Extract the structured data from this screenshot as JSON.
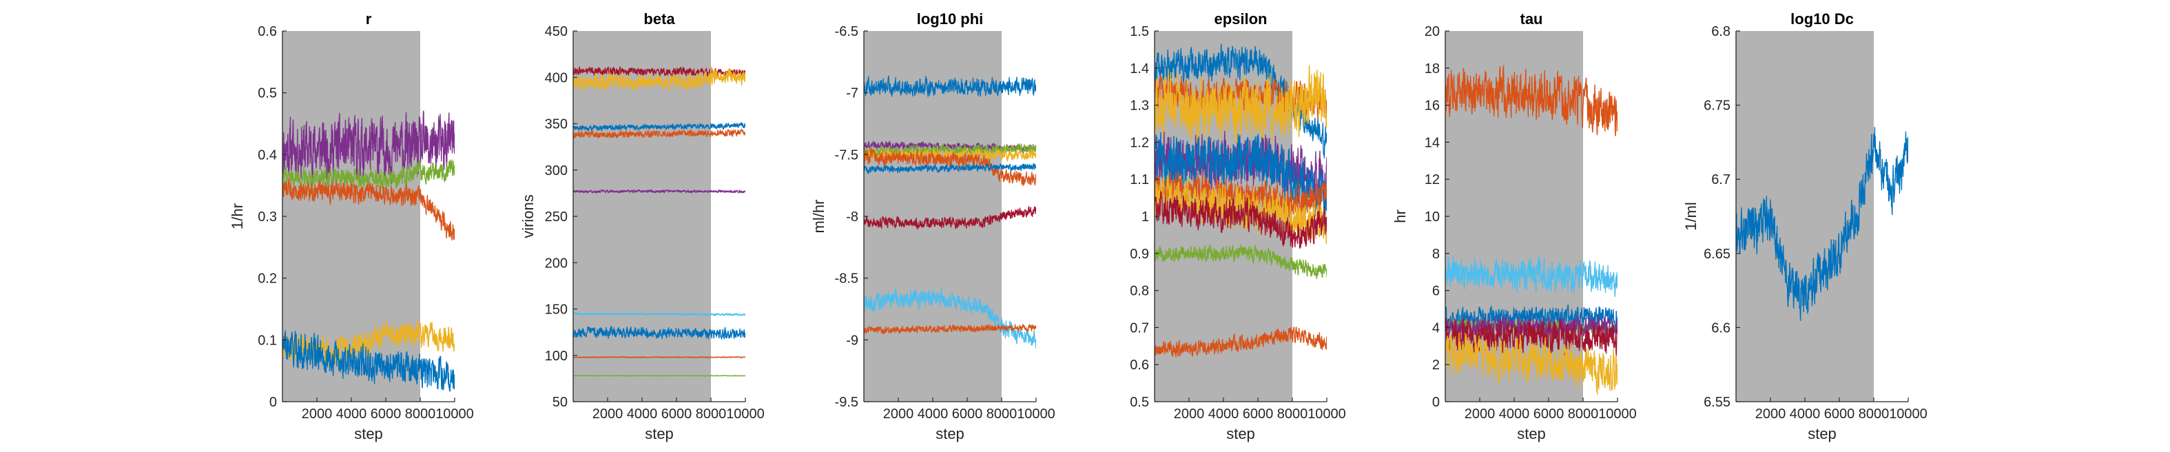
{
  "chart_data": [
    {
      "type": "line",
      "title": "r",
      "xlabel": "step",
      "ylabel": "1/hr",
      "xlim": [
        0,
        10000
      ],
      "ylim": [
        0,
        0.6
      ],
      "xticks": [
        2000,
        4000,
        6000,
        8000,
        10000
      ],
      "xtick_labels": [
        "2000",
        "4000",
        "6000",
        "8000",
        "10000"
      ],
      "yticks": [
        0,
        0.1,
        0.2,
        0.3,
        0.4,
        0.5,
        0.6
      ],
      "ytick_labels": [
        "0",
        "0.1",
        "0.2",
        "0.3",
        "0.4",
        "0.5",
        "0.6"
      ],
      "burnin_shading": [
        0,
        8000
      ],
      "series": [
        {
          "color": "#7E2F8E",
          "keyframes": [
            [
              0,
              0.41
            ],
            [
              8000,
              0.41
            ],
            [
              10000,
              0.42
            ]
          ],
          "noise": 0.035
        },
        {
          "color": "#77AC30",
          "keyframes": [
            [
              0,
              0.365
            ],
            [
              6000,
              0.36
            ],
            [
              8000,
              0.37
            ],
            [
              10000,
              0.38
            ]
          ],
          "noise": 0.012
        },
        {
          "color": "#D95319",
          "keyframes": [
            [
              0,
              0.345
            ],
            [
              6000,
              0.335
            ],
            [
              8000,
              0.33
            ],
            [
              9000,
              0.3
            ],
            [
              10000,
              0.27
            ]
          ],
          "noise": 0.012
        },
        {
          "color": "#EDB120",
          "keyframes": [
            [
              0,
              0.09
            ],
            [
              3000,
              0.08
            ],
            [
              6000,
              0.11
            ],
            [
              8000,
              0.11
            ],
            [
              10000,
              0.1
            ]
          ],
          "noise": 0.015
        },
        {
          "color": "#0072BD",
          "keyframes": [
            [
              0,
              0.09
            ],
            [
              3000,
              0.07
            ],
            [
              6000,
              0.06
            ],
            [
              8000,
              0.05
            ],
            [
              10000,
              0.04
            ]
          ],
          "noise": 0.02
        }
      ]
    },
    {
      "type": "line",
      "title": "beta",
      "xlabel": "step",
      "ylabel": "virions",
      "xlim": [
        0,
        10000
      ],
      "ylim": [
        50,
        450
      ],
      "xticks": [
        2000,
        4000,
        6000,
        8000,
        10000
      ],
      "xtick_labels": [
        "2000",
        "4000",
        "6000",
        "8000",
        "10000"
      ],
      "yticks": [
        50,
        100,
        150,
        200,
        250,
        300,
        350,
        400,
        450
      ],
      "ytick_labels": [
        "50",
        "100",
        "150",
        "200",
        "250",
        "300",
        "350",
        "400",
        "450"
      ],
      "burnin_shading": [
        0,
        8000
      ],
      "series": [
        {
          "color": "#A2142F",
          "keyframes": [
            [
              0,
              407
            ],
            [
              10000,
              405
            ]
          ],
          "noise": 3
        },
        {
          "color": "#EDB120",
          "keyframes": [
            [
              0,
              395
            ],
            [
              7000,
              395
            ],
            [
              8000,
              402
            ],
            [
              10000,
              400
            ]
          ],
          "noise": 6
        },
        {
          "color": "#0072BD",
          "keyframes": [
            [
              0,
              345
            ],
            [
              10000,
              348
            ]
          ],
          "noise": 2
        },
        {
          "color": "#D95319",
          "keyframes": [
            [
              0,
              338
            ],
            [
              10000,
              340
            ]
          ],
          "noise": 2.5
        },
        {
          "color": "#7E2F8E",
          "keyframes": [
            [
              0,
              277
            ],
            [
              10000,
              277
            ]
          ],
          "noise": 1
        },
        {
          "color": "#4DBEEE",
          "keyframes": [
            [
              0,
              145
            ],
            [
              10000,
              144
            ]
          ],
          "noise": 0.8
        },
        {
          "color": "#0072BD",
          "keyframes": [
            [
              0,
              125
            ],
            [
              10000,
              123
            ]
          ],
          "noise": 4
        },
        {
          "color": "#D95319",
          "keyframes": [
            [
              0,
              98
            ],
            [
              10000,
              98
            ]
          ],
          "noise": 0.4
        },
        {
          "color": "#77AC30",
          "keyframes": [
            [
              0,
              78
            ],
            [
              10000,
              78
            ]
          ],
          "noise": 0.2
        }
      ]
    },
    {
      "type": "line",
      "title": "log10 phi",
      "xlabel": "step",
      "ylabel": "ml/hr",
      "xlim": [
        0,
        10000
      ],
      "ylim": [
        -9.5,
        -6.5
      ],
      "xticks": [
        2000,
        4000,
        6000,
        8000,
        10000
      ],
      "xtick_labels": [
        "2000",
        "4000",
        "6000",
        "8000",
        "10000"
      ],
      "yticks": [
        -9.5,
        -9,
        -8.5,
        -8,
        -7.5,
        -7,
        -6.5
      ],
      "ytick_labels": [
        "-9.5",
        "-9",
        "-8.5",
        "-8",
        "-7.5",
        "-7",
        "-6.5"
      ],
      "burnin_shading": [
        0,
        8000
      ],
      "series": [
        {
          "color": "#0072BD",
          "keyframes": [
            [
              0,
              -6.95
            ],
            [
              10000,
              -6.95
            ]
          ],
          "noise": 0.05
        },
        {
          "color": "#7E2F8E",
          "keyframes": [
            [
              0,
              -7.42
            ],
            [
              10000,
              -7.45
            ]
          ],
          "noise": 0.02
        },
        {
          "color": "#77AC30",
          "keyframes": [
            [
              0,
              -7.48
            ],
            [
              10000,
              -7.45
            ]
          ],
          "noise": 0.03
        },
        {
          "color": "#EDB120",
          "keyframes": [
            [
              0,
              -7.5
            ],
            [
              10000,
              -7.5
            ]
          ],
          "noise": 0.03
        },
        {
          "color": "#D95319",
          "keyframes": [
            [
              0,
              -7.52
            ],
            [
              7000,
              -7.55
            ],
            [
              8000,
              -7.68
            ],
            [
              10000,
              -7.7
            ]
          ],
          "noise": 0.04
        },
        {
          "color": "#0072BD",
          "keyframes": [
            [
              0,
              -7.62
            ],
            [
              10000,
              -7.6
            ]
          ],
          "noise": 0.02
        },
        {
          "color": "#A2142F",
          "keyframes": [
            [
              0,
              -8.05
            ],
            [
              7000,
              -8.05
            ],
            [
              8000,
              -8.0
            ],
            [
              10000,
              -7.95
            ]
          ],
          "noise": 0.03
        },
        {
          "color": "#4DBEEE",
          "keyframes": [
            [
              0,
              -8.7
            ],
            [
              4000,
              -8.65
            ],
            [
              7000,
              -8.75
            ],
            [
              8000,
              -8.9
            ],
            [
              10000,
              -9.0
            ]
          ],
          "noise": 0.05
        },
        {
          "color": "#D95319",
          "keyframes": [
            [
              0,
              -8.92
            ],
            [
              10000,
              -8.9
            ]
          ],
          "noise": 0.02
        }
      ]
    },
    {
      "type": "line",
      "title": "epsilon",
      "xlabel": "step",
      "ylabel": "",
      "xlim": [
        0,
        10000
      ],
      "ylim": [
        0.5,
        1.5
      ],
      "xticks": [
        2000,
        4000,
        6000,
        8000,
        10000
      ],
      "xtick_labels": [
        "2000",
        "4000",
        "6000",
        "8000",
        "10000"
      ],
      "yticks": [
        0.5,
        0.6,
        0.7,
        0.8,
        0.9,
        1,
        1.1,
        1.2,
        1.3,
        1.4,
        1.5
      ],
      "ytick_labels": [
        "0.5",
        "0.6",
        "0.7",
        "0.8",
        "0.9",
        "1",
        "1.1",
        "1.2",
        "1.3",
        "1.4",
        "1.5"
      ],
      "burnin_shading": [
        0,
        8000
      ],
      "series": [
        {
          "color": "#0072BD",
          "keyframes": [
            [
              0,
              1.4
            ],
            [
              6000,
              1.42
            ],
            [
              8000,
              1.3
            ],
            [
              10000,
              1.2
            ]
          ],
          "noise": 0.03
        },
        {
          "color": "#D95319",
          "keyframes": [
            [
              0,
              1.34
            ],
            [
              8000,
              1.32
            ],
            [
              10000,
              1.3
            ]
          ],
          "noise": 0.03
        },
        {
          "color": "#EDB120",
          "keyframes": [
            [
              0,
              1.3
            ],
            [
              6000,
              1.28
            ],
            [
              8000,
              1.3
            ],
            [
              10000,
              1.32
            ]
          ],
          "noise": 0.06
        },
        {
          "color": "#7E2F8E",
          "keyframes": [
            [
              0,
              1.15
            ],
            [
              7000,
              1.15
            ],
            [
              8000,
              1.12
            ],
            [
              10000,
              1.1
            ]
          ],
          "noise": 0.05
        },
        {
          "color": "#0072BD",
          "keyframes": [
            [
              0,
              1.15
            ],
            [
              6000,
              1.15
            ],
            [
              8000,
              1.1
            ],
            [
              10000,
              1.05
            ]
          ],
          "noise": 0.05
        },
        {
          "color": "#D95319",
          "keyframes": [
            [
              0,
              1.08
            ],
            [
              8000,
              1.04
            ],
            [
              10000,
              1.05
            ]
          ],
          "noise": 0.03
        },
        {
          "color": "#EDB120",
          "keyframes": [
            [
              0,
              1.05
            ],
            [
              8000,
              1.0
            ],
            [
              10000,
              0.98
            ]
          ],
          "noise": 0.04
        },
        {
          "color": "#A2142F",
          "keyframes": [
            [
              0,
              1.02
            ],
            [
              6000,
              1.0
            ],
            [
              8000,
              0.95
            ],
            [
              10000,
              0.98
            ]
          ],
          "noise": 0.03
        },
        {
          "color": "#77AC30",
          "keyframes": [
            [
              0,
              0.9
            ],
            [
              6000,
              0.9
            ],
            [
              8000,
              0.87
            ],
            [
              10000,
              0.85
            ]
          ],
          "noise": 0.015
        },
        {
          "color": "#D95319",
          "keyframes": [
            [
              0,
              0.64
            ],
            [
              4000,
              0.65
            ],
            [
              8000,
              0.68
            ],
            [
              10000,
              0.66
            ]
          ],
          "noise": 0.015
        }
      ]
    },
    {
      "type": "line",
      "title": "tau",
      "xlabel": "step",
      "ylabel": "hr",
      "xlim": [
        0,
        10000
      ],
      "ylim": [
        0,
        20
      ],
      "xticks": [
        2000,
        4000,
        6000,
        8000,
        10000
      ],
      "xtick_labels": [
        "2000",
        "4000",
        "6000",
        "8000",
        "10000"
      ],
      "yticks": [
        0,
        2,
        4,
        6,
        8,
        10,
        12,
        14,
        16,
        18,
        20
      ],
      "ytick_labels": [
        "0",
        "2",
        "4",
        "6",
        "8",
        "10",
        "12",
        "14",
        "16",
        "18",
        "20"
      ],
      "burnin_shading": [
        0,
        8000
      ],
      "series": [
        {
          "color": "#D95319",
          "keyframes": [
            [
              0,
              16.8
            ],
            [
              6000,
              16.5
            ],
            [
              8000,
              16.0
            ],
            [
              10000,
              15.5
            ]
          ],
          "noise": 0.9
        },
        {
          "color": "#4DBEEE",
          "keyframes": [
            [
              0,
              7.0
            ],
            [
              8000,
              6.8
            ],
            [
              10000,
              6.5
            ]
          ],
          "noise": 0.6
        },
        {
          "color": "#0072BD",
          "keyframes": [
            [
              0,
              4.5
            ],
            [
              10000,
              4.6
            ]
          ],
          "noise": 0.4
        },
        {
          "color": "#77AC30",
          "keyframes": [
            [
              0,
              4.2
            ],
            [
              10000,
              4.0
            ]
          ],
          "noise": 0.2
        },
        {
          "color": "#7E2F8E",
          "keyframes": [
            [
              0,
              4.0
            ],
            [
              10000,
              4.0
            ]
          ],
          "noise": 0.4
        },
        {
          "color": "#A2142F",
          "keyframes": [
            [
              0,
              3.5
            ],
            [
              10000,
              3.5
            ]
          ],
          "noise": 0.6
        },
        {
          "color": "#EDB120",
          "keyframes": [
            [
              0,
              2.5
            ],
            [
              8000,
              2.0
            ],
            [
              10000,
              1.5
            ]
          ],
          "noise": 0.8
        }
      ]
    },
    {
      "type": "line",
      "title": "log10 Dc",
      "xlabel": "step",
      "ylabel": "1/ml",
      "xlim": [
        0,
        10000
      ],
      "ylim": [
        6.55,
        6.8
      ],
      "xticks": [
        2000,
        4000,
        6000,
        8000,
        10000
      ],
      "xtick_labels": [
        "2000",
        "4000",
        "6000",
        "8000",
        "10000"
      ],
      "yticks": [
        6.55,
        6.6,
        6.65,
        6.7,
        6.75,
        6.8
      ],
      "ytick_labels": [
        "6.55",
        "6.6",
        "6.65",
        "6.7",
        "6.75",
        "6.8"
      ],
      "burnin_shading": [
        0,
        8000
      ],
      "series": [
        {
          "color": "#0072BD",
          "keyframes": [
            [
              0,
              6.665
            ],
            [
              1000,
              6.665
            ],
            [
              2000,
              6.675
            ],
            [
              3000,
              6.63
            ],
            [
              4000,
              6.62
            ],
            [
              5000,
              6.64
            ],
            [
              6000,
              6.65
            ],
            [
              7000,
              6.68
            ],
            [
              8000,
              6.72
            ],
            [
              9000,
              6.69
            ],
            [
              10000,
              6.72
            ]
          ],
          "noise": 0.012
        }
      ]
    }
  ],
  "colors": {
    "background": "#ffffff",
    "burnin_shading": "#b3b3b3",
    "axis": "#262626"
  }
}
